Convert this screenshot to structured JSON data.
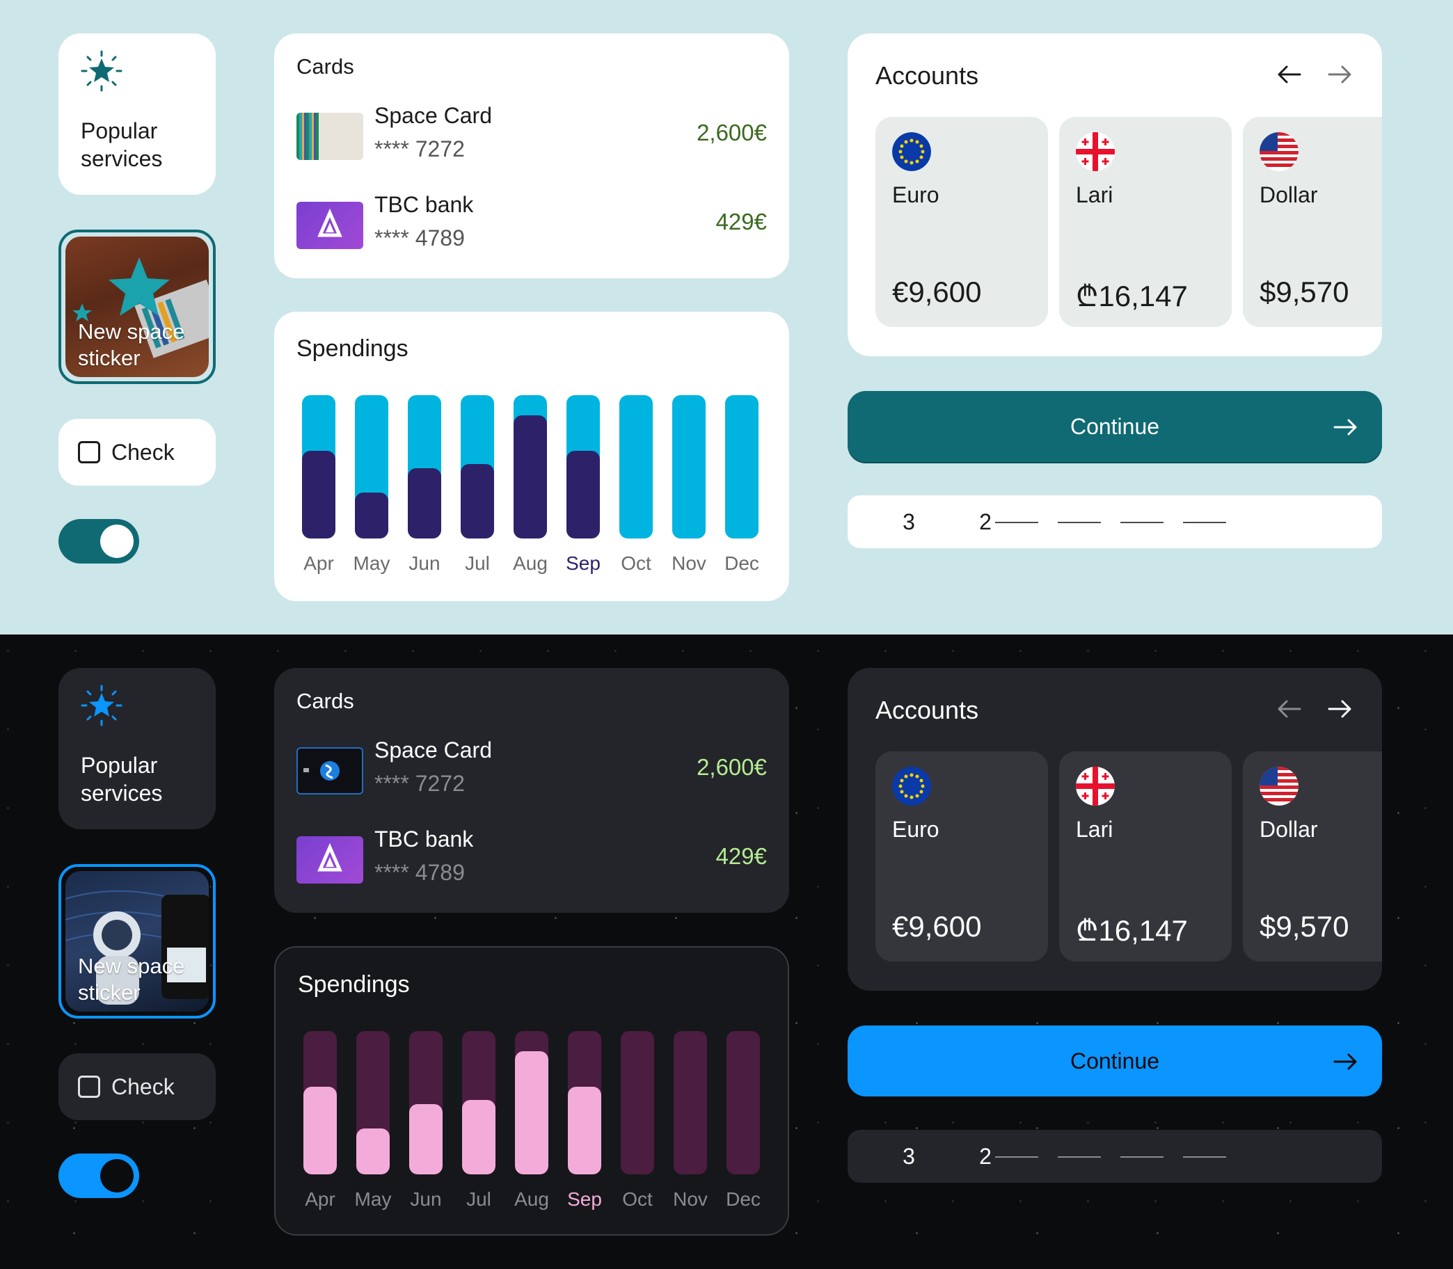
{
  "themes": {
    "light": {
      "popular_label": "Popular services",
      "sticker_label": "New space sticker",
      "check_label": "Check",
      "toggle_on": true,
      "cards_title": "Cards",
      "cards": [
        {
          "name": "Space Card",
          "number": "**** 7272",
          "amount": "2,600€"
        },
        {
          "name": "TBC bank",
          "number": "**** 4789",
          "amount": "429€"
        }
      ],
      "spendings_title": "Spendings",
      "accounts_title": "Accounts",
      "accounts": [
        {
          "currency": "Euro",
          "balance": "€9,600",
          "flag": "eu-flag-icon"
        },
        {
          "currency": "Lari",
          "balance": "₾16,147",
          "flag": "georgia-flag-icon"
        },
        {
          "currency": "Dollar",
          "balance": "$9,570",
          "flag": "us-flag-icon"
        }
      ],
      "continue_label": "Continue",
      "pager": [
        "3",
        "2"
      ],
      "colors": {
        "accent": "#0f6a73",
        "bar_bg": "#00b4e0",
        "bar_fill": "#2d226a",
        "amount": "#3b6a1f"
      }
    },
    "dark": {
      "popular_label": "Popular services",
      "sticker_label": "New space sticker",
      "check_label": "Check",
      "toggle_on": true,
      "cards_title": "Cards",
      "cards": [
        {
          "name": "Space Card",
          "number": "**** 7272",
          "amount": "2,600€"
        },
        {
          "name": "TBC bank",
          "number": "**** 4789",
          "amount": "429€"
        }
      ],
      "spendings_title": "Spendings",
      "accounts_title": "Accounts",
      "accounts": [
        {
          "currency": "Euro",
          "balance": "€9,600",
          "flag": "eu-flag-icon"
        },
        {
          "currency": "Lari",
          "balance": "₾16,147",
          "flag": "georgia-flag-icon"
        },
        {
          "currency": "Dollar",
          "balance": "$9,570",
          "flag": "us-flag-icon"
        }
      ],
      "continue_label": "Continue",
      "pager": [
        "3",
        "2"
      ],
      "colors": {
        "accent": "#0a95ff",
        "bar_bg": "#4b1d40",
        "bar_fill": "#f3acd9",
        "amount": "#b6ec94"
      }
    }
  },
  "chart_data": {
    "type": "bar",
    "title": "Spendings",
    "categories": [
      "Apr",
      "May",
      "Jun",
      "Jul",
      "Aug",
      "Sep",
      "Oct",
      "Nov",
      "Dec"
    ],
    "highlighted": "Sep",
    "series": [
      {
        "values": [
          0.61,
          0.32,
          0.49,
          0.52,
          0.86,
          0.61,
          0,
          0,
          0
        ]
      }
    ]
  }
}
